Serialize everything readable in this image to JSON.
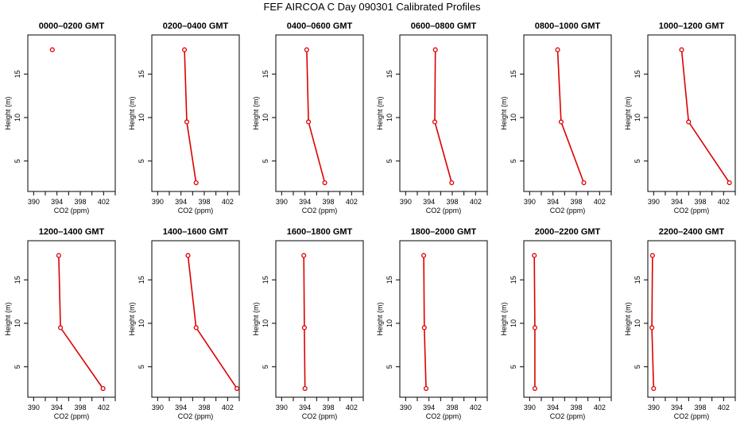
{
  "figure": {
    "title": "FEF AIRCOA C  Day 090301  Calibrated Profiles"
  },
  "axis_labels": {
    "x": "CO2 (ppm)",
    "y": "Height (m)"
  },
  "colors": {
    "series": "#dd0000",
    "axes": "#000000"
  },
  "chart_data": [
    {
      "type": "line",
      "title": "0000–0200 GMT",
      "xlim": [
        389,
        404
      ],
      "ylim": [
        1.5,
        19.5
      ],
      "x_ticks": [
        390,
        394,
        398,
        402
      ],
      "y_ticks": [
        5,
        10,
        15
      ],
      "series": [
        {
          "points": [
            {
              "x": 393.2,
              "y": 17.8
            }
          ]
        }
      ]
    },
    {
      "type": "line",
      "title": "0200–0400 GMT",
      "xlim": [
        389,
        404
      ],
      "ylim": [
        1.5,
        19.5
      ],
      "x_ticks": [
        390,
        394,
        398,
        402
      ],
      "y_ticks": [
        5,
        10,
        15
      ],
      "series": [
        {
          "points": [
            {
              "x": 394.6,
              "y": 17.8
            },
            {
              "x": 395.0,
              "y": 9.5
            },
            {
              "x": 396.6,
              "y": 2.5
            }
          ]
        }
      ]
    },
    {
      "type": "line",
      "title": "0400–0600 GMT",
      "xlim": [
        389,
        404
      ],
      "ylim": [
        1.5,
        19.5
      ],
      "x_ticks": [
        390,
        394,
        398,
        402
      ],
      "y_ticks": [
        5,
        10,
        15
      ],
      "series": [
        {
          "points": [
            {
              "x": 394.3,
              "y": 17.8
            },
            {
              "x": 394.6,
              "y": 9.5
            },
            {
              "x": 397.4,
              "y": 2.5
            }
          ]
        }
      ]
    },
    {
      "type": "line",
      "title": "0600–0800 GMT",
      "xlim": [
        389,
        404
      ],
      "ylim": [
        1.5,
        19.5
      ],
      "x_ticks": [
        390,
        394,
        398,
        402
      ],
      "y_ticks": [
        5,
        10,
        15
      ],
      "series": [
        {
          "points": [
            {
              "x": 395.1,
              "y": 17.8
            },
            {
              "x": 395.0,
              "y": 9.5
            },
            {
              "x": 397.9,
              "y": 2.5
            }
          ]
        }
      ]
    },
    {
      "type": "line",
      "title": "0800–1000 GMT",
      "xlim": [
        389,
        404
      ],
      "ylim": [
        1.5,
        19.5
      ],
      "x_ticks": [
        390,
        394,
        398,
        402
      ],
      "y_ticks": [
        5,
        10,
        15
      ],
      "series": [
        {
          "points": [
            {
              "x": 394.8,
              "y": 17.8
            },
            {
              "x": 395.4,
              "y": 9.5
            },
            {
              "x": 399.3,
              "y": 2.5
            }
          ]
        }
      ]
    },
    {
      "type": "line",
      "title": "1000–1200 GMT",
      "xlim": [
        389,
        404
      ],
      "ylim": [
        1.5,
        19.5
      ],
      "x_ticks": [
        390,
        394,
        398,
        402
      ],
      "y_ticks": [
        5,
        10,
        15
      ],
      "series": [
        {
          "points": [
            {
              "x": 394.8,
              "y": 17.8
            },
            {
              "x": 396.0,
              "y": 9.5
            },
            {
              "x": 403.0,
              "y": 2.5
            }
          ]
        }
      ]
    },
    {
      "type": "line",
      "title": "1200–1400 GMT",
      "xlim": [
        389,
        404
      ],
      "ylim": [
        1.5,
        19.5
      ],
      "x_ticks": [
        390,
        394,
        398,
        402
      ],
      "y_ticks": [
        5,
        10,
        15
      ],
      "series": [
        {
          "points": [
            {
              "x": 394.3,
              "y": 17.8
            },
            {
              "x": 394.6,
              "y": 9.5
            },
            {
              "x": 401.9,
              "y": 2.5
            }
          ]
        }
      ]
    },
    {
      "type": "line",
      "title": "1400–1600 GMT",
      "xlim": [
        389,
        404
      ],
      "ylim": [
        1.5,
        19.5
      ],
      "x_ticks": [
        390,
        394,
        398,
        402
      ],
      "y_ticks": [
        5,
        10,
        15
      ],
      "series": [
        {
          "points": [
            {
              "x": 395.2,
              "y": 17.8
            },
            {
              "x": 396.6,
              "y": 9.5
            },
            {
              "x": 403.6,
              "y": 2.5
            }
          ]
        }
      ]
    },
    {
      "type": "line",
      "title": "1600–1800 GMT",
      "xlim": [
        389,
        404
      ],
      "ylim": [
        1.5,
        19.5
      ],
      "x_ticks": [
        390,
        394,
        398,
        402
      ],
      "y_ticks": [
        5,
        10,
        15
      ],
      "series": [
        {
          "points": [
            {
              "x": 393.8,
              "y": 17.8
            },
            {
              "x": 393.9,
              "y": 9.5
            },
            {
              "x": 394.0,
              "y": 2.5
            }
          ]
        }
      ]
    },
    {
      "type": "line",
      "title": "1800–2000 GMT",
      "xlim": [
        389,
        404
      ],
      "ylim": [
        1.5,
        19.5
      ],
      "x_ticks": [
        390,
        394,
        398,
        402
      ],
      "y_ticks": [
        5,
        10,
        15
      ],
      "series": [
        {
          "points": [
            {
              "x": 393.1,
              "y": 17.8
            },
            {
              "x": 393.2,
              "y": 9.5
            },
            {
              "x": 393.5,
              "y": 2.5
            }
          ]
        }
      ]
    },
    {
      "type": "line",
      "title": "2000–2200 GMT",
      "xlim": [
        389,
        404
      ],
      "ylim": [
        1.5,
        19.5
      ],
      "x_ticks": [
        390,
        394,
        398,
        402
      ],
      "y_ticks": [
        5,
        10,
        15
      ],
      "series": [
        {
          "points": [
            {
              "x": 390.8,
              "y": 17.8
            },
            {
              "x": 390.9,
              "y": 9.5
            },
            {
              "x": 390.9,
              "y": 2.5
            }
          ]
        }
      ]
    },
    {
      "type": "line",
      "title": "2200–2400 GMT",
      "xlim": [
        389,
        404
      ],
      "ylim": [
        1.5,
        19.5
      ],
      "x_ticks": [
        390,
        394,
        398,
        402
      ],
      "y_ticks": [
        5,
        10,
        15
      ],
      "series": [
        {
          "points": [
            {
              "x": 389.8,
              "y": 17.8
            },
            {
              "x": 389.7,
              "y": 9.5
            },
            {
              "x": 390.0,
              "y": 2.5
            }
          ]
        }
      ]
    }
  ]
}
